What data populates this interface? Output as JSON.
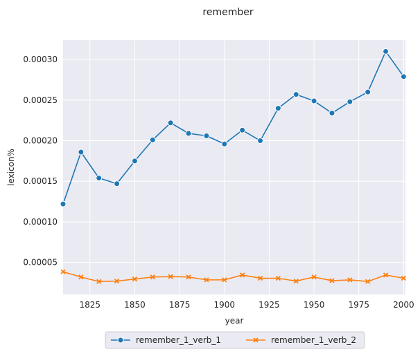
{
  "chart_data": {
    "type": "line",
    "title": "remember",
    "xlabel": "year",
    "ylabel": "lexicon%",
    "xlim": [
      1810,
      2001
    ],
    "ylim": [
      1.05e-05,
      0.000324
    ],
    "x_ticks": [
      1825,
      1850,
      1875,
      1900,
      1925,
      1950,
      1975,
      2000
    ],
    "x_tick_labels": [
      "1825",
      "1850",
      "1875",
      "1900",
      "1925",
      "1950",
      "1975",
      "2000"
    ],
    "y_ticks": [
      5e-05,
      0.0001,
      0.00015,
      0.0002,
      0.00025,
      0.0003
    ],
    "y_tick_labels": [
      "0.00005",
      "0.00010",
      "0.00015",
      "0.00020",
      "0.00025",
      "0.00030"
    ],
    "grid": true,
    "legend_position": "bottom-center",
    "x": [
      1810,
      1820,
      1830,
      1840,
      1850,
      1860,
      1870,
      1880,
      1890,
      1900,
      1910,
      1920,
      1930,
      1940,
      1950,
      1960,
      1970,
      1980,
      1990,
      2000
    ],
    "series": [
      {
        "name": "remember_1_verb_1",
        "color": "#1f77b4",
        "marker": "circle",
        "values": [
          0.000122,
          0.000186,
          0.000154,
          0.000147,
          0.000175,
          0.000201,
          0.000222,
          0.000209,
          0.000206,
          0.000196,
          0.000213,
          0.0002,
          0.00024,
          0.000257,
          0.000249,
          0.000234,
          0.000248,
          0.00026,
          0.00031,
          0.000279
        ]
      },
      {
        "name": "remember_1_verb_2",
        "color": "#ff7f0e",
        "marker": "x",
        "values": [
          3.85e-05,
          3.2e-05,
          2.65e-05,
          2.7e-05,
          2.95e-05,
          3.2e-05,
          3.25e-05,
          3.2e-05,
          2.85e-05,
          2.85e-05,
          3.45e-05,
          3.05e-05,
          3.05e-05,
          2.7e-05,
          3.2e-05,
          2.75e-05,
          2.85e-05,
          2.65e-05,
          3.45e-05,
          3.05e-05
        ]
      }
    ]
  },
  "colors": {
    "plot_background": "#eaeaf2",
    "grid": "#ffffff"
  }
}
